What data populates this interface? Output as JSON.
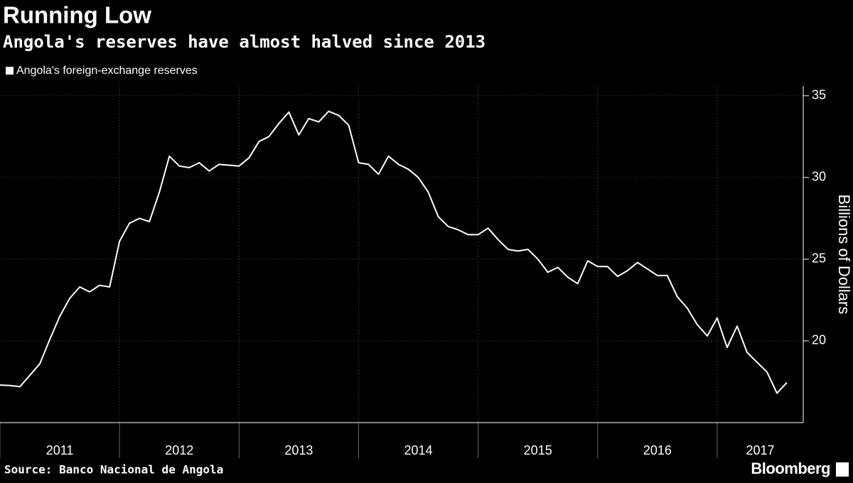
{
  "chart_data": {
    "type": "line",
    "title": "Running Low",
    "subtitle": "Angola's reserves have almost halved since 2013",
    "y_label": "Billions of Dollars",
    "source": "Source: Banco Nacional de Angola",
    "brand": "Bloomberg",
    "x": [
      2011.0,
      2011.083,
      2011.167,
      2011.25,
      2011.333,
      2011.417,
      2011.5,
      2011.583,
      2011.667,
      2011.75,
      2011.833,
      2011.917,
      2012.0,
      2012.083,
      2012.167,
      2012.25,
      2012.333,
      2012.417,
      2012.5,
      2012.583,
      2012.667,
      2012.75,
      2012.833,
      2012.917,
      2013.0,
      2013.083,
      2013.167,
      2013.25,
      2013.333,
      2013.417,
      2013.5,
      2013.583,
      2013.667,
      2013.75,
      2013.833,
      2013.917,
      2014.0,
      2014.083,
      2014.167,
      2014.25,
      2014.333,
      2014.417,
      2014.5,
      2014.583,
      2014.667,
      2014.75,
      2014.833,
      2014.917,
      2015.0,
      2015.083,
      2015.167,
      2015.25,
      2015.333,
      2015.417,
      2015.5,
      2015.583,
      2015.667,
      2015.75,
      2015.833,
      2015.917,
      2016.0,
      2016.083,
      2016.167,
      2016.25,
      2016.333,
      2016.417,
      2016.5,
      2016.583,
      2016.667,
      2016.75,
      2016.833,
      2016.917,
      2017.0,
      2017.083,
      2017.167,
      2017.25,
      2017.333,
      2017.417,
      2017.5,
      2017.583
    ],
    "series": [
      {
        "name": "Angola's foreign-exchange reserves",
        "color": "#ffffff",
        "values": [
          17.3,
          17.27,
          17.2,
          17.9,
          18.6,
          20.1,
          21.5,
          22.6,
          23.3,
          23.0,
          23.4,
          23.3,
          26.1,
          27.2,
          27.5,
          27.3,
          29.1,
          31.3,
          30.7,
          30.6,
          30.9,
          30.4,
          30.8,
          30.75,
          30.7,
          31.2,
          32.2,
          32.5,
          33.3,
          34.0,
          32.6,
          33.6,
          33.4,
          34.05,
          33.8,
          33.2,
          30.9,
          30.8,
          30.2,
          31.3,
          30.8,
          30.5,
          30.0,
          29.1,
          27.6,
          27.0,
          26.8,
          26.5,
          26.5,
          26.9,
          26.2,
          25.6,
          25.5,
          25.6,
          25.0,
          24.2,
          24.5,
          23.9,
          23.5,
          24.9,
          24.55,
          24.55,
          23.95,
          24.3,
          24.8,
          24.4,
          24.0,
          24.0,
          22.7,
          22.0,
          21.0,
          20.3,
          21.4,
          19.6,
          20.9,
          19.3,
          18.7,
          18.1,
          16.8,
          17.45
        ]
      }
    ],
    "xlim": [
      2011,
      2017.72
    ],
    "xticks": [
      2011,
      2012,
      2013,
      2014,
      2015,
      2016,
      2017
    ],
    "ylim": [
      15,
      35.6
    ],
    "yticks": [
      20,
      25,
      30,
      35
    ],
    "grid": true
  }
}
